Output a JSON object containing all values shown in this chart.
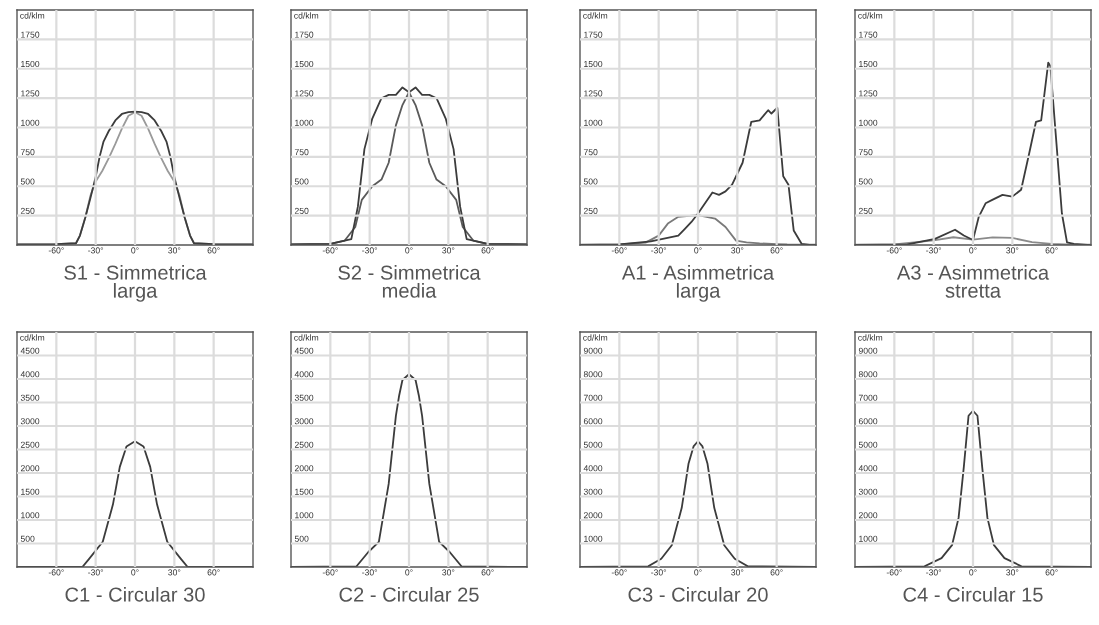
{
  "chart_data": [
    {
      "type": "line",
      "title": "S1 - Simmetrica\nlarga",
      "ylabel": "cd/klm",
      "xlim": [
        -90,
        90
      ],
      "ylim": [
        0,
        2000
      ],
      "grid": true,
      "xticks": [
        {
          "value": -60,
          "label": "-60°"
        },
        {
          "value": -30,
          "label": "-30°"
        },
        {
          "value": 0,
          "label": "0°"
        },
        {
          "value": 30,
          "label": "30°"
        },
        {
          "value": 60,
          "label": "60°"
        }
      ],
      "yticks": [
        250,
        500,
        750,
        1000,
        1250,
        1500,
        1750
      ],
      "series": [
        {
          "color": "#9a9a9a",
          "x": [
            -90,
            -60,
            -45,
            -42,
            -38,
            -34,
            -30,
            -25,
            -20,
            -15,
            -10,
            -5,
            0,
            5,
            10,
            15,
            20,
            25,
            30,
            34,
            38,
            42,
            45,
            60,
            90
          ],
          "values": [
            5,
            8,
            15,
            80,
            230,
            420,
            540,
            630,
            740,
            860,
            990,
            1100,
            1130,
            1100,
            990,
            860,
            740,
            630,
            540,
            420,
            230,
            80,
            15,
            8,
            5
          ]
        },
        {
          "color": "#3c3c3c",
          "x": [
            -90,
            -60,
            -45,
            -42,
            -38,
            -34,
            -30,
            -27,
            -24,
            -20,
            -15,
            -10,
            -5,
            0,
            5,
            10,
            15,
            20,
            24,
            27,
            30,
            34,
            38,
            42,
            45,
            60,
            90
          ],
          "values": [
            5,
            8,
            15,
            80,
            230,
            400,
            580,
            750,
            880,
            970,
            1060,
            1115,
            1130,
            1135,
            1130,
            1115,
            1060,
            970,
            880,
            750,
            580,
            400,
            230,
            80,
            15,
            8,
            5
          ]
        }
      ]
    },
    {
      "type": "line",
      "title": "S2 - Simmetrica\nmedia",
      "ylabel": "cd/klm",
      "xlim": [
        -90,
        90
      ],
      "ylim": [
        0,
        2000
      ],
      "grid": true,
      "xticks": [
        {
          "value": -60,
          "label": "-60°"
        },
        {
          "value": -30,
          "label": "-30°"
        },
        {
          "value": 0,
          "label": "0°"
        },
        {
          "value": 30,
          "label": "30°"
        },
        {
          "value": 60,
          "label": "60°"
        }
      ],
      "yticks": [
        250,
        500,
        750,
        1000,
        1250,
        1500,
        1750
      ],
      "series": [
        {
          "color": "#5a5a5a",
          "x": [
            -90,
            -60,
            -49,
            -41,
            -36,
            -28,
            -21,
            -15.5,
            -10,
            -5,
            0,
            5,
            10,
            15.5,
            21,
            28,
            36,
            41,
            49,
            60,
            90
          ],
          "values": [
            5,
            10,
            38,
            153,
            384,
            500,
            557,
            700,
            1018,
            1191,
            1300,
            1191,
            1018,
            700,
            557,
            500,
            384,
            153,
            38,
            10,
            5
          ]
        },
        {
          "color": "#3c3c3c",
          "x": [
            -90,
            -60,
            -44,
            -39,
            -34,
            -28,
            -21,
            -15.5,
            -10,
            -5,
            0,
            5,
            10,
            15.5,
            21,
            28,
            34,
            39,
            44,
            60,
            90
          ],
          "values": [
            5,
            10,
            50,
            326,
            816,
            1076,
            1249,
            1278,
            1278,
            1341,
            1300,
            1341,
            1278,
            1278,
            1249,
            1076,
            816,
            326,
            50,
            10,
            5
          ]
        }
      ]
    },
    {
      "type": "line",
      "title": "A1 - Asimmetrica\nlarga",
      "ylabel": "cd/klm",
      "xlim": [
        -90,
        90
      ],
      "ylim": [
        0,
        2000
      ],
      "grid": true,
      "xticks": [
        {
          "value": -60,
          "label": "-60°"
        },
        {
          "value": -30,
          "label": "-30°"
        },
        {
          "value": 0,
          "label": "0°"
        },
        {
          "value": 30,
          "label": "30°"
        },
        {
          "value": 60,
          "label": "60°"
        }
      ],
      "yticks": [
        250,
        500,
        750,
        1000,
        1250,
        1500,
        1750
      ],
      "series": [
        {
          "color": "#7a7a7a",
          "x": [
            -90,
            -60,
            -40,
            -30,
            -23,
            -15,
            0,
            13,
            21,
            29,
            37,
            47,
            60,
            68,
            90
          ],
          "values": [
            3,
            5,
            20,
            80,
            182,
            240,
            254,
            225,
            153,
            37,
            23,
            14,
            8,
            5,
            3
          ]
        },
        {
          "color": "#3c3c3c",
          "x": [
            -90,
            -60,
            -36,
            -15,
            -10,
            -5,
            0,
            11,
            16,
            21,
            26,
            34,
            40.6,
            47,
            53.5,
            56,
            60.5,
            65,
            69,
            73,
            79,
            85,
            89
          ],
          "values": [
            0,
            5,
            30,
            80,
            138,
            196,
            268,
            447,
            427,
            456,
            513,
            700,
            1047,
            1061,
            1147,
            1119,
            1168,
            585,
            513,
            124,
            10,
            0,
            0
          ]
        }
      ]
    },
    {
      "type": "line",
      "title": "A3 - Asimmetrica\nstretta",
      "ylabel": "cd/klm",
      "xlim": [
        -90,
        90
      ],
      "ylim": [
        0,
        2000
      ],
      "grid": true,
      "xticks": [
        {
          "value": -60,
          "label": "-60°"
        },
        {
          "value": -30,
          "label": "-30°"
        },
        {
          "value": 0,
          "label": "0°"
        },
        {
          "value": 30,
          "label": "30°"
        },
        {
          "value": 60,
          "label": "60°"
        }
      ],
      "yticks": [
        250,
        500,
        750,
        1000,
        1250,
        1500,
        1750
      ],
      "series": [
        {
          "color": "#8a8a8a",
          "x": [
            -90,
            -60,
            -30,
            -15,
            0,
            15,
            30,
            45,
            60,
            75,
            90
          ],
          "values": [
            2,
            5,
            40,
            66,
            45,
            65,
            60,
            25,
            10,
            3,
            2
          ]
        },
        {
          "color": "#3c3c3c",
          "x": [
            -90,
            -50,
            -29,
            -13.7,
            -7,
            0,
            4.4,
            9.6,
            14.7,
            22.5,
            30,
            36.7,
            43,
            48,
            52,
            57.4,
            59,
            64,
            67.8,
            71.7,
            77,
            89
          ],
          "values": [
            0,
            5,
            52,
            130,
            81,
            43,
            240,
            355,
            384,
            427,
            412,
            470,
            787,
            1047,
            1061,
            1552,
            1523,
            816,
            268,
            23,
            9,
            0
          ]
        }
      ]
    },
    {
      "type": "line",
      "title": "C1 - Circular 30",
      "ylabel": "cd/klm",
      "xlim": [
        -90,
        90
      ],
      "ylim": [
        0,
        5000
      ],
      "grid": true,
      "xticks": [
        {
          "value": -60,
          "label": "-60°"
        },
        {
          "value": -30,
          "label": "-30°"
        },
        {
          "value": 0,
          "label": "0°"
        },
        {
          "value": 30,
          "label": "30°"
        },
        {
          "value": 60,
          "label": "60°"
        }
      ],
      "yticks": [
        500,
        1000,
        1500,
        2000,
        2500,
        3000,
        3500,
        4000,
        4500
      ],
      "series": [
        {
          "color": "#3c3c3c",
          "x": [
            -90,
            -40,
            -35,
            -24.6,
            -16.8,
            -11.6,
            -6.5,
            0,
            6.5,
            11.6,
            16.8,
            24.6,
            35,
            40,
            90
          ],
          "values": [
            0,
            5,
            174,
            536,
            1333,
            2130,
            2565,
            2674,
            2565,
            2130,
            1333,
            536,
            174,
            5,
            0
          ]
        }
      ]
    },
    {
      "type": "line",
      "title": "C2 - Circular 25",
      "ylabel": "cd/klm",
      "xlim": [
        -90,
        90
      ],
      "ylim": [
        0,
        5000
      ],
      "grid": true,
      "xticks": [
        {
          "value": -60,
          "label": "-60°"
        },
        {
          "value": -30,
          "label": "-30°"
        },
        {
          "value": 0,
          "label": "0°"
        },
        {
          "value": 30,
          "label": "30°"
        },
        {
          "value": 60,
          "label": "60°"
        }
      ],
      "yticks": [
        500,
        1000,
        1500,
        2000,
        2500,
        3000,
        3500,
        4000,
        4500
      ],
      "series": [
        {
          "color": "#3c3c3c",
          "x": [
            -90,
            -40,
            -31,
            -23,
            -15.5,
            -10,
            -7.5,
            -5,
            0,
            5,
            7.5,
            10,
            15.5,
            23,
            31,
            40,
            90
          ],
          "values": [
            0,
            15,
            319,
            536,
            1768,
            3217,
            3650,
            3978,
            4101,
            3978,
            3650,
            3217,
            1768,
            536,
            319,
            15,
            0
          ]
        }
      ]
    },
    {
      "type": "line",
      "title": "C3 - Circular 20",
      "ylabel": "cd/klm",
      "xlim": [
        -90,
        90
      ],
      "ylim": [
        0,
        10000
      ],
      "grid": true,
      "xticks": [
        {
          "value": -60,
          "label": "-60°"
        },
        {
          "value": -30,
          "label": "-30°"
        },
        {
          "value": 0,
          "label": "0°"
        },
        {
          "value": 30,
          "label": "30°"
        },
        {
          "value": 60,
          "label": "60°"
        }
      ],
      "yticks": [
        1000,
        2000,
        3000,
        4000,
        5000,
        6000,
        7000,
        8000,
        9000
      ],
      "series": [
        {
          "color": "#3c3c3c",
          "x": [
            -90,
            -38,
            -28,
            -20,
            -12.4,
            -7.2,
            -3.4,
            0,
            3.4,
            7.2,
            12.4,
            20,
            28,
            38,
            90
          ],
          "values": [
            0,
            30,
            350,
            928,
            2520,
            4405,
            5130,
            5350,
            5130,
            4405,
            2520,
            928,
            350,
            30,
            0
          ]
        }
      ]
    },
    {
      "type": "line",
      "title": "C4 - Circular 15",
      "ylabel": "cd/klm",
      "xlim": [
        -90,
        90
      ],
      "ylim": [
        0,
        10000
      ],
      "grid": true,
      "xticks": [
        {
          "value": -60,
          "label": "-60°"
        },
        {
          "value": -30,
          "label": "-30°"
        },
        {
          "value": 0,
          "label": "0°"
        },
        {
          "value": 30,
          "label": "30°"
        },
        {
          "value": 60,
          "label": "60°"
        }
      ],
      "yticks": [
        1000,
        2000,
        3000,
        4000,
        5000,
        6000,
        7000,
        8000,
        9000
      ],
      "series": [
        {
          "color": "#3c3c3c",
          "x": [
            -90,
            -37,
            -24,
            -16,
            -11,
            -7,
            -3.4,
            0,
            3.4,
            7,
            11,
            16,
            24,
            37,
            90
          ],
          "values": [
            0,
            30,
            380,
            928,
            2090,
            4260,
            6435,
            6650,
            6435,
            4260,
            2090,
            928,
            380,
            30,
            0
          ]
        }
      ]
    }
  ]
}
